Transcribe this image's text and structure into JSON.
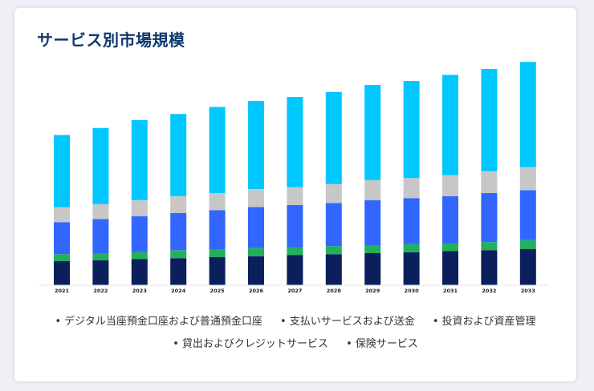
{
  "card": {
    "title": "サービス別市場規模"
  },
  "chart_data": {
    "type": "bar",
    "stacked": true,
    "categories": [
      "2021",
      "2022",
      "2023",
      "2024",
      "2025",
      "2026",
      "2027",
      "2028",
      "2029",
      "2030",
      "2031",
      "2032",
      "2033"
    ],
    "series": [
      {
        "name": "デジタル当座預金口座および普通預金口座",
        "color": "#0b1f5c",
        "values": [
          24,
          25,
          26,
          27,
          28,
          29,
          30,
          31,
          32,
          33,
          34,
          35,
          36
        ]
      },
      {
        "name": "支払いサービスおよび送金",
        "color": "#20b15a",
        "values": [
          7,
          7,
          7,
          8,
          8,
          8,
          8,
          8,
          8,
          8,
          8,
          8,
          9
        ]
      },
      {
        "name": "投資および資産管理",
        "color": "#3366ff",
        "values": [
          32,
          34,
          36,
          37,
          39,
          41,
          42,
          43,
          45,
          46,
          47,
          49,
          50
        ]
      },
      {
        "name": "貸出およびクレジットサービス",
        "color": "#c7c7c7",
        "values": [
          15,
          15,
          16,
          17,
          17,
          18,
          18,
          19,
          20,
          20,
          21,
          22,
          23
        ]
      },
      {
        "name": "保険サービス",
        "color": "#00c8ff",
        "values": [
          72,
          76,
          80,
          82,
          86,
          88,
          90,
          92,
          95,
          97,
          100,
          102,
          105
        ]
      }
    ],
    "ylim": [
      0,
      240
    ],
    "grid": false,
    "legend_position": "bottom"
  },
  "legend": {
    "bullet": "•",
    "items": [
      "デジタル当座預金口座および普通預金口座",
      "支払いサービスおよび送金",
      "投資および資産管理",
      "貸出およびクレジットサービス",
      "保険サービス"
    ]
  }
}
